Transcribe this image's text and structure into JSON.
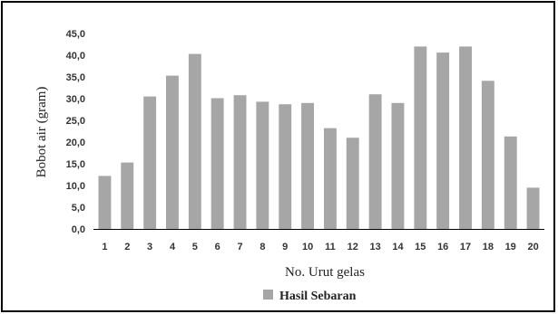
{
  "chart_data": {
    "type": "bar",
    "categories": [
      "1",
      "2",
      "3",
      "4",
      "5",
      "6",
      "7",
      "8",
      "9",
      "10",
      "11",
      "12",
      "13",
      "14",
      "15",
      "16",
      "17",
      "18",
      "19",
      "20"
    ],
    "series": [
      {
        "name": "Hasil Sebaran",
        "values": [
          12.2,
          15.3,
          30.5,
          35.3,
          40.3,
          30.1,
          30.8,
          29.3,
          28.7,
          29.0,
          23.2,
          21.0,
          31.0,
          29.0,
          42.0,
          40.6,
          42.0,
          34.1,
          21.3,
          9.5
        ]
      }
    ],
    "xlabel": "No. Urut gelas",
    "ylabel": "Bobot air (gram)",
    "ylim": [
      0,
      45
    ],
    "yticks": [
      "0,0",
      "5,0",
      "10,0",
      "15,0",
      "20,0",
      "25,0",
      "30,0",
      "35,0",
      "40,0",
      "45,0"
    ],
    "legend_position": "bottom",
    "grid": false,
    "colors": {
      "bar": "#a6a6a6",
      "axis": "#000000"
    }
  }
}
